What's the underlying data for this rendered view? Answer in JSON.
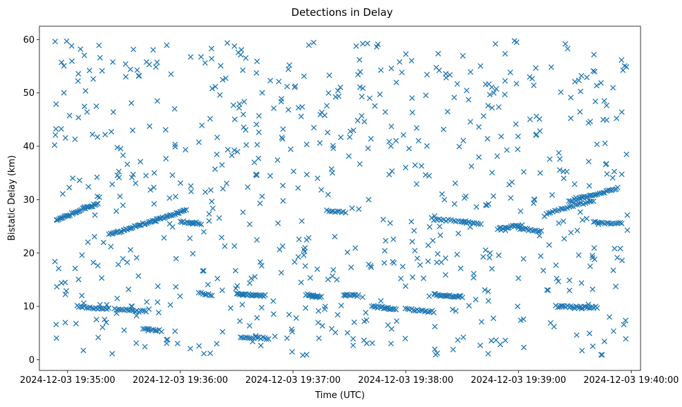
{
  "chart_data": {
    "type": "scatter",
    "title": "Detections in Delay",
    "xlabel": "Time (UTC)",
    "ylabel": "Bistatic Delay (km)",
    "marker": "x",
    "marker_color": "#1f77b4",
    "grid": false,
    "legend": "none",
    "xlim": [
      "2024-12-03 19:34:45",
      "2024-12-03 19:40:05"
    ],
    "ylim": [
      -2.0,
      62.5
    ],
    "x_ticks": [
      "2024-12-03 19:35:00",
      "2024-12-03 19:36:00",
      "2024-12-03 19:37:00",
      "2024-12-03 19:38:00",
      "2024-12-03 19:39:00",
      "2024-12-03 19:40:00"
    ],
    "y_ticks": [
      0,
      10,
      20,
      30,
      40,
      50,
      60
    ],
    "tracks": [
      {
        "start": "2024-12-03 19:34:54",
        "end": "2024-12-03 19:35:16",
        "y_start": 26.2,
        "y_end": 29.3,
        "n": 34
      },
      {
        "start": "2024-12-03 19:35:23",
        "end": "2024-12-03 19:36:03",
        "y_start": 23.5,
        "y_end": 28.0,
        "n": 55
      },
      {
        "start": "2024-12-03 19:36:00",
        "end": "2024-12-03 19:36:11",
        "y_start": 25.9,
        "y_end": 25.5,
        "n": 14
      },
      {
        "start": "2024-12-03 19:37:18",
        "end": "2024-12-03 19:37:28",
        "y_start": 27.9,
        "y_end": 27.6,
        "n": 10
      },
      {
        "start": "2024-12-03 19:38:15",
        "end": "2024-12-03 19:38:32",
        "y_start": 26.3,
        "y_end": 25.9,
        "n": 14
      },
      {
        "start": "2024-12-03 19:38:30",
        "end": "2024-12-03 19:38:40",
        "y_start": 25.8,
        "y_end": 25.5,
        "n": 10
      },
      {
        "start": "2024-12-03 19:38:49",
        "end": "2024-12-03 19:39:02",
        "y_start": 24.6,
        "y_end": 25.2,
        "n": 16
      },
      {
        "start": "2024-12-03 19:39:00",
        "end": "2024-12-03 19:39:12",
        "y_start": 24.6,
        "y_end": 24.1,
        "n": 14
      },
      {
        "start": "2024-12-03 19:39:15",
        "end": "2024-12-03 19:39:40",
        "y_start": 27.5,
        "y_end": 29.8,
        "n": 24
      },
      {
        "start": "2024-12-03 19:39:27",
        "end": "2024-12-03 19:39:53",
        "y_start": 29.7,
        "y_end": 32.1,
        "n": 30
      },
      {
        "start": "2024-12-03 19:39:40",
        "end": "2024-12-03 19:39:55",
        "y_start": 25.8,
        "y_end": 25.5,
        "n": 16
      },
      {
        "start": "2024-12-03 19:35:05",
        "end": "2024-12-03 19:35:22",
        "y_start": 10.0,
        "y_end": 9.5,
        "n": 18
      },
      {
        "start": "2024-12-03 19:35:25",
        "end": "2024-12-03 19:35:42",
        "y_start": 9.5,
        "y_end": 9.0,
        "n": 18
      },
      {
        "start": "2024-12-03 19:35:40",
        "end": "2024-12-03 19:35:50",
        "y_start": 5.8,
        "y_end": 5.4,
        "n": 10
      },
      {
        "start": "2024-12-03 19:36:10",
        "end": "2024-12-03 19:36:17",
        "y_start": 12.5,
        "y_end": 12.1,
        "n": 8
      },
      {
        "start": "2024-12-03 19:36:30",
        "end": "2024-12-03 19:36:45",
        "y_start": 12.3,
        "y_end": 12.0,
        "n": 22
      },
      {
        "start": "2024-12-03 19:36:32",
        "end": "2024-12-03 19:36:47",
        "y_start": 4.3,
        "y_end": 4.0,
        "n": 16
      },
      {
        "start": "2024-12-03 19:37:07",
        "end": "2024-12-03 19:37:15",
        "y_start": 12.2,
        "y_end": 11.8,
        "n": 14
      },
      {
        "start": "2024-12-03 19:37:27",
        "end": "2024-12-03 19:37:35",
        "y_start": 12.2,
        "y_end": 12.0,
        "n": 10
      },
      {
        "start": "2024-12-03 19:37:42",
        "end": "2024-12-03 19:37:55",
        "y_start": 10.0,
        "y_end": 9.5,
        "n": 18
      },
      {
        "start": "2024-12-03 19:38:00",
        "end": "2024-12-03 19:38:15",
        "y_start": 9.5,
        "y_end": 9.0,
        "n": 16
      },
      {
        "start": "2024-12-03 19:38:15",
        "end": "2024-12-03 19:38:30",
        "y_start": 12.2,
        "y_end": 11.8,
        "n": 22
      },
      {
        "start": "2024-12-03 19:39:20",
        "end": "2024-12-03 19:39:42",
        "y_start": 10.0,
        "y_end": 9.8,
        "n": 26
      }
    ],
    "scatter_region": {
      "start": "2024-12-03 19:34:53",
      "end": "2024-12-03 19:39:58",
      "y_range": [
        0.8,
        60.0
      ],
      "n": 700,
      "seed": 1337
    }
  }
}
